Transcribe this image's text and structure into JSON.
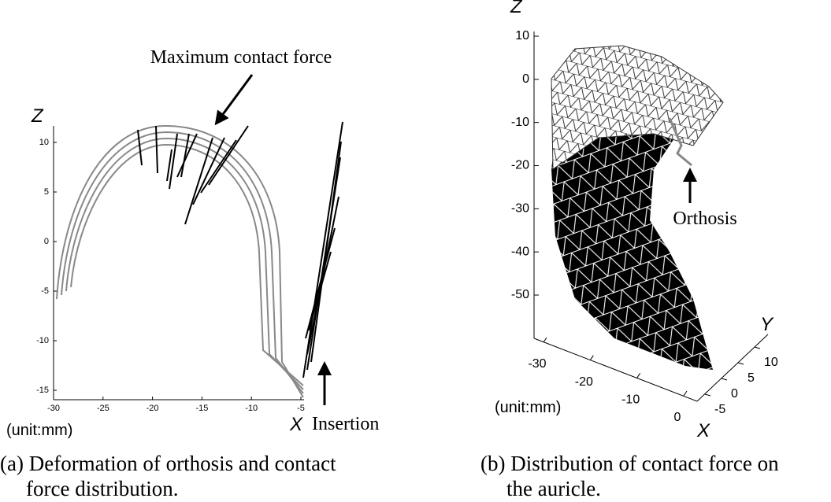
{
  "figure_a": {
    "z_label": "Z",
    "x_label": "X",
    "xticks": [
      -30,
      -25,
      -20,
      -15,
      -10,
      -5
    ],
    "zticks": [
      10,
      5,
      0,
      -5,
      -10,
      -15
    ],
    "annotation_max": "Maximum contact force",
    "annotation_insertion": "Insertion",
    "unit": "(unit:mm)",
    "caption": [
      "(a) Deformation of orthosis and contact",
      "force distribution."
    ]
  },
  "figure_b": {
    "z_label": "Z",
    "x_label": "X",
    "y_label": "Y",
    "zticks": [
      10,
      0,
      -10,
      -20,
      -30,
      -40,
      -50
    ],
    "xticks": [
      -30,
      -20,
      -10,
      0
    ],
    "yticks": [
      -5,
      0,
      5,
      10
    ],
    "annotation_orthosis": "Orthosis",
    "unit": "(unit:mm)",
    "caption": [
      "(b) Distribution of contact force on",
      "the auricle."
    ]
  }
}
